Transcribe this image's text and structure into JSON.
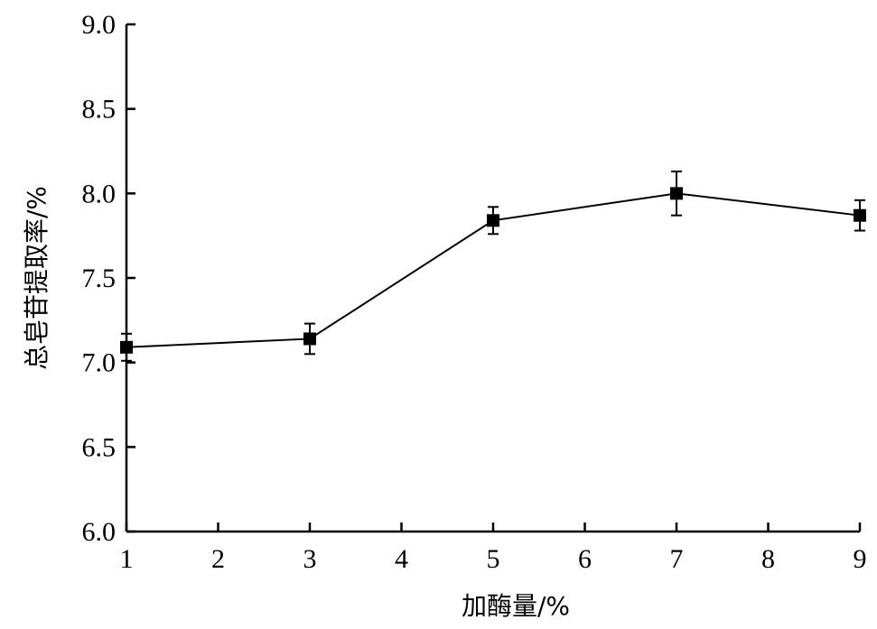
{
  "chart_data": {
    "type": "line",
    "xlabel": "加酶量/%",
    "ylabel": "总皂苷提取率/%",
    "xlim": [
      1,
      9
    ],
    "ylim": [
      6.0,
      9.0
    ],
    "x_ticks": [
      "1",
      "2",
      "3",
      "4",
      "5",
      "6",
      "7",
      "8",
      "9"
    ],
    "y_ticks": [
      "6.0",
      "6.5",
      "7.0",
      "7.5",
      "8.0",
      "8.5",
      "9.0"
    ],
    "grid": false,
    "legend": "none",
    "series": [
      {
        "x": [
          1,
          3,
          5,
          7,
          9
        ],
        "values": [
          7.09,
          7.14,
          7.84,
          8.0,
          7.87
        ],
        "error": [
          0.08,
          0.09,
          0.08,
          0.13,
          0.09
        ],
        "marker": "square",
        "color": "#000000"
      }
    ]
  }
}
